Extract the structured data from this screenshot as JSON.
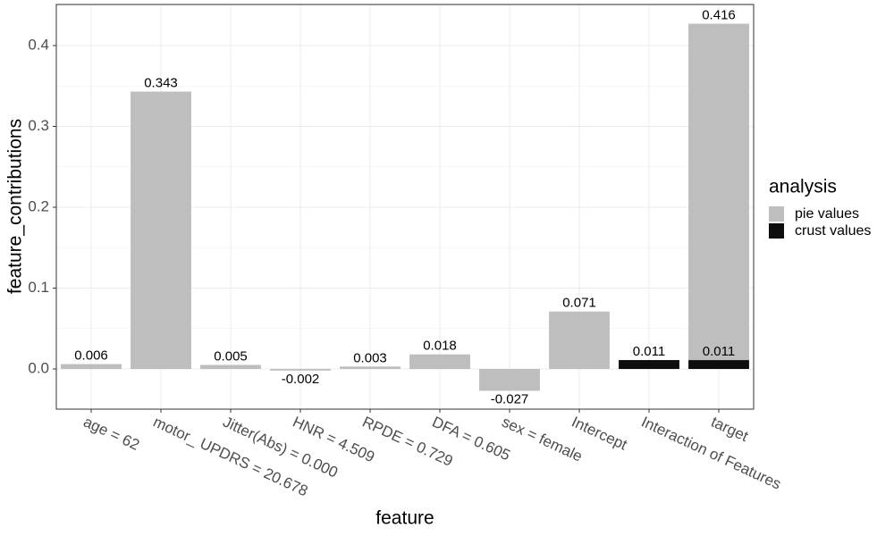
{
  "chart_data": {
    "type": "bar",
    "x_label": "feature",
    "y_label": "feature_contributions",
    "legend_title": "analysis",
    "legend_position": "right",
    "grid": true,
    "stacked": true,
    "categories": [
      "age = 62",
      "motor_ UPDRS = 20.678",
      "Jitter(Abs) = 0.000",
      "HNR = 4.509",
      "RPDE = 0.729",
      "DFA = 0.605",
      "sex = female",
      "Intercept",
      "Interaction of Features",
      "target"
    ],
    "series": [
      {
        "name": "pie values",
        "color": "#bebebe",
        "values": [
          0.006,
          0.343,
          0.005,
          -0.002,
          0.003,
          0.018,
          -0.027,
          0.071,
          null,
          0.416
        ]
      },
      {
        "name": "crust values",
        "color": "#0d0d0d",
        "values": [
          null,
          null,
          null,
          null,
          null,
          null,
          null,
          null,
          0.011,
          0.011
        ]
      }
    ],
    "ylim": [
      -0.0497,
      0.4508
    ],
    "yticks": [
      {
        "value": 0,
        "label": "0.0"
      },
      0.1,
      0.2,
      0.3,
      0.4
    ]
  }
}
